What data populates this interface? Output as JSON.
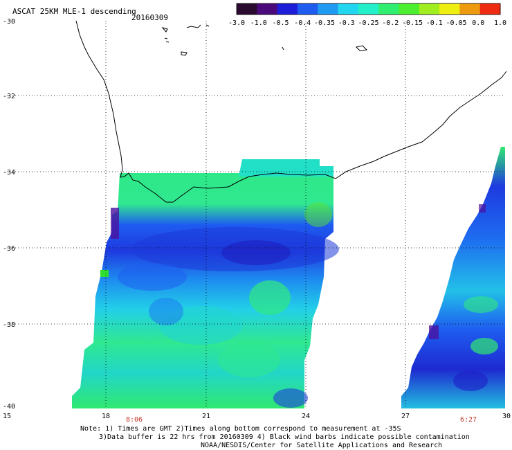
{
  "title": "ASCAT 25KM MLE-1 descending",
  "date": "20160309",
  "colorbar": {
    "labels": [
      "-3.0",
      "-1.0",
      "-0.5",
      "-0.4",
      "-0.35",
      "-0.3",
      "-0.25",
      "-0.2",
      "-0.15",
      "-0.1",
      "-0.05",
      "0.0",
      "1.0"
    ],
    "colors": [
      "#2a0a2e",
      "#4b0a7a",
      "#1e1ed8",
      "#1e5cf0",
      "#1e9af0",
      "#22d6f0",
      "#22f0c8",
      "#30ee70",
      "#4cee30",
      "#a0ee20",
      "#eeee10",
      "#ee9a10",
      "#ee2a10"
    ]
  },
  "axes": {
    "lon_ticks": [
      "15",
      "18",
      "21",
      "24",
      "27",
      "30"
    ],
    "lat_ticks": [
      "-30",
      "-32",
      "-34",
      "-36",
      "-38",
      "-40"
    ]
  },
  "times": [
    {
      "label": "8:06"
    },
    {
      "label": "6:27"
    }
  ],
  "notes": [
    "Note: 1) Times are GMT 2)Times along bottom correspond to measurement at -35S",
    "3)Data buffer is 22 hrs from 20160309 4) Black wind barbs indicate possible contamination",
    "NOAA/NESDIS/Center for Satellite Applications and Research"
  ]
}
